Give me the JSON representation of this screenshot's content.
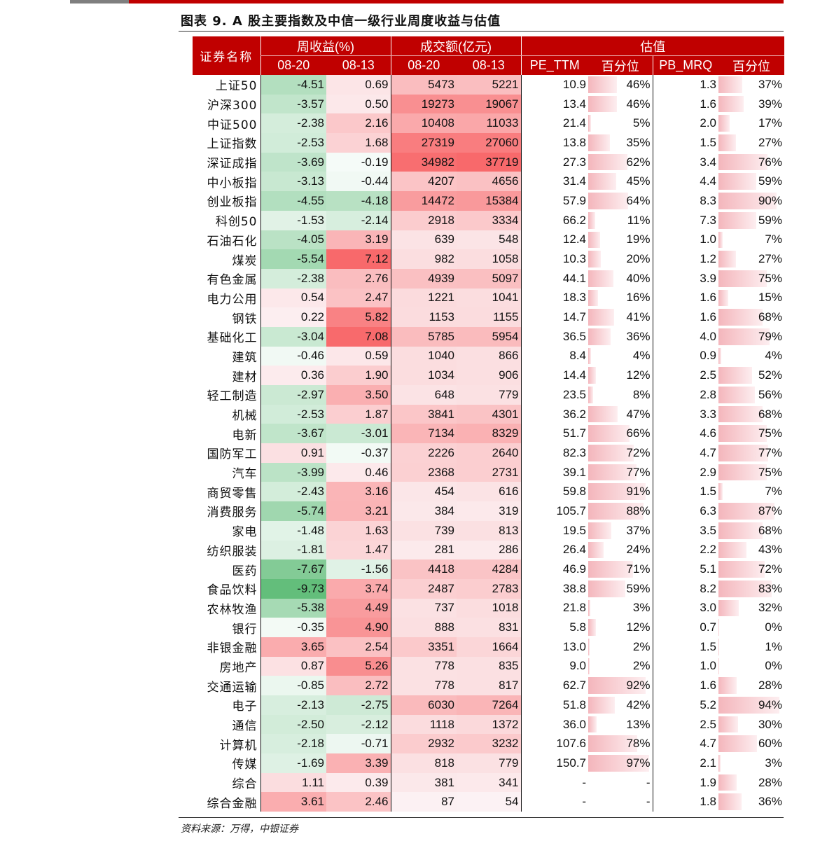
{
  "title": "图表 9. A 股主要指数及中信一级行业周度收益与估值",
  "source": "资料来源：万得，中银证券",
  "header": {
    "name": "证券名称",
    "weekly_return": "周收益(%)",
    "turnover": "成交额(亿元)",
    "valuation": "估值",
    "d1": "08-20",
    "d2": "08-13",
    "pe": "PE_TTM",
    "pct": "百分位",
    "pb": "PB_MRQ"
  },
  "colors": {
    "accent": "#c00000",
    "green": "#63be7b",
    "red": "#f8696b"
  },
  "rows": [
    {
      "name": "上证50",
      "r1": "-4.51",
      "r2": "0.69",
      "t1": "5473",
      "t2": "5221",
      "pe": "10.9",
      "pep": "46%",
      "pb": "1.3",
      "pbp": "37%"
    },
    {
      "name": "沪深300",
      "r1": "-3.57",
      "r2": "0.50",
      "t1": "19273",
      "t2": "19067",
      "pe": "13.4",
      "pep": "46%",
      "pb": "1.6",
      "pbp": "39%"
    },
    {
      "name": "中证500",
      "r1": "-2.38",
      "r2": "2.16",
      "t1": "10408",
      "t2": "11033",
      "pe": "21.4",
      "pep": "5%",
      "pb": "2.0",
      "pbp": "17%"
    },
    {
      "name": "上证指数",
      "r1": "-2.53",
      "r2": "1.68",
      "t1": "27319",
      "t2": "27060",
      "pe": "13.8",
      "pep": "35%",
      "pb": "1.5",
      "pbp": "27%"
    },
    {
      "name": "深证成指",
      "r1": "-3.69",
      "r2": "-0.19",
      "t1": "34982",
      "t2": "37719",
      "pe": "27.3",
      "pep": "62%",
      "pb": "3.4",
      "pbp": "76%"
    },
    {
      "name": "中小板指",
      "r1": "-3.13",
      "r2": "-0.44",
      "t1": "4207",
      "t2": "4656",
      "pe": "31.4",
      "pep": "45%",
      "pb": "4.4",
      "pbp": "59%"
    },
    {
      "name": "创业板指",
      "r1": "-4.55",
      "r2": "-4.18",
      "t1": "14472",
      "t2": "15384",
      "pe": "57.9",
      "pep": "64%",
      "pb": "8.3",
      "pbp": "90%"
    },
    {
      "name": "科创50",
      "r1": "-1.53",
      "r2": "-2.14",
      "t1": "2918",
      "t2": "3334",
      "pe": "66.2",
      "pep": "11%",
      "pb": "7.3",
      "pbp": "59%"
    },
    {
      "name": "石油石化",
      "r1": "-4.05",
      "r2": "3.19",
      "t1": "639",
      "t2": "548",
      "pe": "12.4",
      "pep": "19%",
      "pb": "1.0",
      "pbp": "7%"
    },
    {
      "name": "煤炭",
      "r1": "-5.54",
      "r2": "7.12",
      "t1": "982",
      "t2": "1058",
      "pe": "10.3",
      "pep": "20%",
      "pb": "1.2",
      "pbp": "27%"
    },
    {
      "name": "有色金属",
      "r1": "-2.38",
      "r2": "2.76",
      "t1": "4939",
      "t2": "5097",
      "pe": "44.1",
      "pep": "40%",
      "pb": "3.9",
      "pbp": "75%"
    },
    {
      "name": "电力公用",
      "r1": "0.54",
      "r2": "2.47",
      "t1": "1221",
      "t2": "1041",
      "pe": "18.3",
      "pep": "16%",
      "pb": "1.6",
      "pbp": "15%"
    },
    {
      "name": "钢铁",
      "r1": "0.22",
      "r2": "5.82",
      "t1": "1153",
      "t2": "1155",
      "pe": "14.7",
      "pep": "41%",
      "pb": "1.6",
      "pbp": "68%"
    },
    {
      "name": "基础化工",
      "r1": "-3.04",
      "r2": "7.08",
      "t1": "5785",
      "t2": "5954",
      "pe": "36.5",
      "pep": "36%",
      "pb": "4.0",
      "pbp": "79%"
    },
    {
      "name": "建筑",
      "r1": "-0.46",
      "r2": "0.59",
      "t1": "1040",
      "t2": "866",
      "pe": "8.4",
      "pep": "4%",
      "pb": "0.9",
      "pbp": "4%"
    },
    {
      "name": "建材",
      "r1": "0.36",
      "r2": "1.90",
      "t1": "1034",
      "t2": "906",
      "pe": "14.4",
      "pep": "12%",
      "pb": "2.5",
      "pbp": "52%"
    },
    {
      "name": "轻工制造",
      "r1": "-2.97",
      "r2": "3.50",
      "t1": "648",
      "t2": "779",
      "pe": "23.5",
      "pep": "8%",
      "pb": "2.8",
      "pbp": "56%"
    },
    {
      "name": "机械",
      "r1": "-2.53",
      "r2": "1.87",
      "t1": "3841",
      "t2": "4301",
      "pe": "36.2",
      "pep": "47%",
      "pb": "3.3",
      "pbp": "68%"
    },
    {
      "name": "电新",
      "r1": "-3.67",
      "r2": "-3.01",
      "t1": "7134",
      "t2": "8329",
      "pe": "51.7",
      "pep": "66%",
      "pb": "4.6",
      "pbp": "75%"
    },
    {
      "name": "国防军工",
      "r1": "0.91",
      "r2": "-0.37",
      "t1": "2226",
      "t2": "2640",
      "pe": "82.3",
      "pep": "72%",
      "pb": "4.7",
      "pbp": "77%"
    },
    {
      "name": "汽车",
      "r1": "-3.99",
      "r2": "0.46",
      "t1": "2368",
      "t2": "2731",
      "pe": "39.1",
      "pep": "77%",
      "pb": "2.9",
      "pbp": "75%"
    },
    {
      "name": "商贸零售",
      "r1": "-2.43",
      "r2": "3.16",
      "t1": "454",
      "t2": "616",
      "pe": "59.8",
      "pep": "91%",
      "pb": "1.5",
      "pbp": "7%"
    },
    {
      "name": "消费服务",
      "r1": "-5.74",
      "r2": "3.21",
      "t1": "384",
      "t2": "319",
      "pe": "105.7",
      "pep": "88%",
      "pb": "6.3",
      "pbp": "87%"
    },
    {
      "name": "家电",
      "r1": "-1.48",
      "r2": "1.63",
      "t1": "739",
      "t2": "813",
      "pe": "19.5",
      "pep": "37%",
      "pb": "3.5",
      "pbp": "68%"
    },
    {
      "name": "纺织服装",
      "r1": "-1.81",
      "r2": "1.47",
      "t1": "281",
      "t2": "286",
      "pe": "26.4",
      "pep": "24%",
      "pb": "2.2",
      "pbp": "43%"
    },
    {
      "name": "医药",
      "r1": "-7.67",
      "r2": "-1.56",
      "t1": "4418",
      "t2": "4284",
      "pe": "46.9",
      "pep": "71%",
      "pb": "5.1",
      "pbp": "72%"
    },
    {
      "name": "食品饮料",
      "r1": "-9.73",
      "r2": "3.74",
      "t1": "2487",
      "t2": "2783",
      "pe": "38.8",
      "pep": "59%",
      "pb": "8.2",
      "pbp": "83%"
    },
    {
      "name": "农林牧渔",
      "r1": "-5.38",
      "r2": "4.49",
      "t1": "737",
      "t2": "1018",
      "pe": "21.8",
      "pep": "3%",
      "pb": "3.0",
      "pbp": "32%"
    },
    {
      "name": "银行",
      "r1": "-0.35",
      "r2": "4.90",
      "t1": "888",
      "t2": "831",
      "pe": "5.8",
      "pep": "12%",
      "pb": "0.7",
      "pbp": "0%"
    },
    {
      "name": "非银金融",
      "r1": "3.65",
      "r2": "2.54",
      "t1": "3351",
      "t2": "1664",
      "pe": "13.0",
      "pep": "2%",
      "pb": "1.5",
      "pbp": "1%"
    },
    {
      "name": "房地产",
      "r1": "0.87",
      "r2": "5.26",
      "t1": "778",
      "t2": "835",
      "pe": "9.0",
      "pep": "2%",
      "pb": "1.0",
      "pbp": "0%"
    },
    {
      "name": "交通运输",
      "r1": "-0.85",
      "r2": "2.72",
      "t1": "778",
      "t2": "817",
      "pe": "62.7",
      "pep": "92%",
      "pb": "1.6",
      "pbp": "28%"
    },
    {
      "name": "电子",
      "r1": "-2.13",
      "r2": "-2.75",
      "t1": "6030",
      "t2": "7264",
      "pe": "51.8",
      "pep": "42%",
      "pb": "5.2",
      "pbp": "94%"
    },
    {
      "name": "通信",
      "r1": "-2.50",
      "r2": "-2.12",
      "t1": "1118",
      "t2": "1372",
      "pe": "36.0",
      "pep": "13%",
      "pb": "2.5",
      "pbp": "30%"
    },
    {
      "name": "计算机",
      "r1": "-2.18",
      "r2": "-0.71",
      "t1": "2932",
      "t2": "3232",
      "pe": "107.6",
      "pep": "78%",
      "pb": "4.7",
      "pbp": "60%"
    },
    {
      "name": "传媒",
      "r1": "-1.69",
      "r2": "3.39",
      "t1": "818",
      "t2": "779",
      "pe": "150.7",
      "pep": "97%",
      "pb": "2.1",
      "pbp": "3%"
    },
    {
      "name": "综合",
      "r1": "1.11",
      "r2": "0.39",
      "t1": "381",
      "t2": "341",
      "pe": "-",
      "pep": "-",
      "pb": "1.9",
      "pbp": "28%"
    },
    {
      "name": "综合金融",
      "r1": "3.61",
      "r2": "2.46",
      "t1": "87",
      "t2": "54",
      "pe": "-",
      "pep": "-",
      "pb": "1.8",
      "pbp": "36%"
    }
  ]
}
